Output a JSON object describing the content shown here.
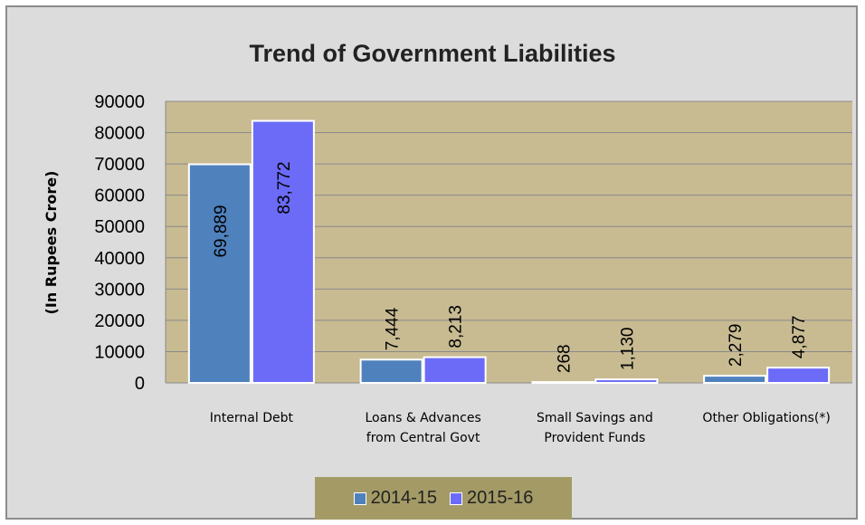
{
  "chart_data": {
    "type": "bar",
    "title": "Trend of Government Liabilities",
    "ylabel": "(In Rupees Crore)",
    "xlabel": "",
    "ylim": [
      0,
      90000
    ],
    "yticks": [
      "0",
      "10000",
      "20000",
      "30000",
      "40000",
      "50000",
      "60000",
      "70000",
      "80000",
      "90000"
    ],
    "categories": [
      [
        "Internal Debt"
      ],
      [
        "Loans & Advances",
        "from Central Govt"
      ],
      [
        "Small Savings and",
        "Provident Funds"
      ],
      [
        "Other Obligations(*)"
      ]
    ],
    "series": [
      {
        "name": "2014-15",
        "values": [
          69889,
          7444,
          268,
          2279
        ],
        "labels": [
          "69,889",
          "7,444",
          "268",
          "2,279"
        ],
        "color": "#4f81bd"
      },
      {
        "name": "2015-16",
        "values": [
          83772,
          8213,
          1130,
          4877
        ],
        "labels": [
          "83,772",
          "8,213",
          "1,130",
          "4,877"
        ],
        "color": "#6b6bf7"
      }
    ],
    "grid": true,
    "legend_position": "bottom",
    "plot_background": "#c8bb92",
    "legend_background": "#a39a66"
  }
}
